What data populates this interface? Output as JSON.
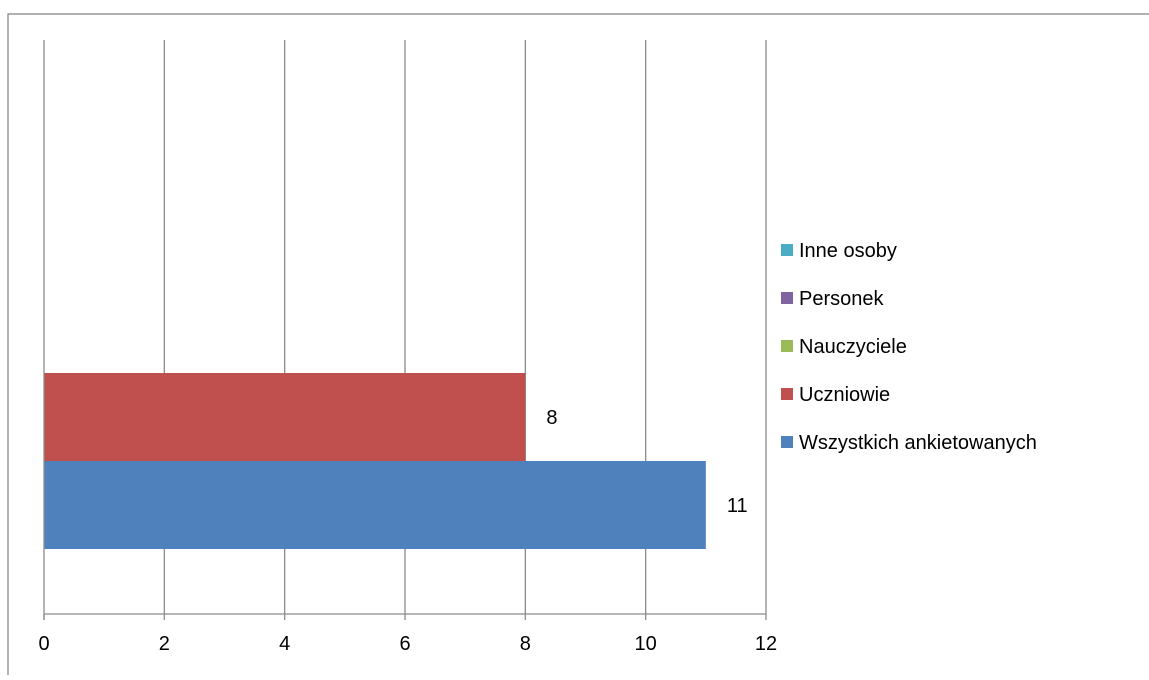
{
  "chart_data": {
    "type": "bar",
    "orientation": "horizontal",
    "title": "",
    "xlabel": "",
    "ylabel": "",
    "xlim": [
      0,
      12
    ],
    "x_ticks": [
      "0",
      "2",
      "4",
      "6",
      "8",
      "10",
      "12"
    ],
    "grid": "vertical",
    "legend_position": "right",
    "categories": [
      ""
    ],
    "series": [
      {
        "name": "Wszystkich ankietowanych",
        "values": [
          11
        ],
        "color": "#4F81BD",
        "label": "11"
      },
      {
        "name": "Uczniowie",
        "values": [
          8
        ],
        "color": "#C0504D",
        "label": "8"
      },
      {
        "name": "Nauczyciele",
        "values": [
          0
        ],
        "color": "#9BBB59",
        "label": ""
      },
      {
        "name": "Personek",
        "values": [
          0
        ],
        "color": "#8064A2",
        "label": ""
      },
      {
        "name": "Inne osoby",
        "values": [
          0
        ],
        "color": "#4BACC6",
        "label": ""
      }
    ]
  }
}
